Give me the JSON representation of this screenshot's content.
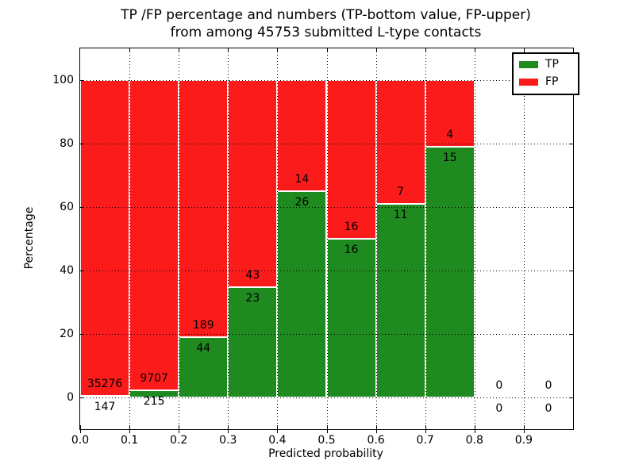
{
  "chart_data": {
    "type": "bar",
    "subtype": "stacked-percentage-histogram",
    "title_line1": "TP /FP percentage and numbers (TP-bottom value, FP-upper)",
    "title_line2": "from among 45753 submitted L-type contacts",
    "total_contacts": 45753,
    "xlabel": "Predicted probability",
    "ylabel": "Percentage",
    "xlim": [
      0.0,
      1.0
    ],
    "ylim": [
      -10,
      110
    ],
    "x_tick_labels": [
      "0.0",
      "0.1",
      "0.2",
      "0.3",
      "0.4",
      "0.5",
      "0.6",
      "0.7",
      "0.8",
      "0.9"
    ],
    "y_tick_values": [
      0,
      20,
      40,
      60,
      80,
      100
    ],
    "y_tick_labels": [
      "0",
      "20",
      "40",
      "60",
      "80",
      "100"
    ],
    "grid": "dotted",
    "legend_position": "upper right",
    "series": [
      {
        "name": "TP",
        "color": "#1f8a1f"
      },
      {
        "name": "FP",
        "color": "#fb1b1b"
      }
    ],
    "bins": [
      {
        "range": [
          0.0,
          0.1
        ],
        "tp": 147,
        "fp": 35276,
        "tp_percent": 0.41
      },
      {
        "range": [
          0.1,
          0.2
        ],
        "tp": 215,
        "fp": 9707,
        "tp_percent": 2.17
      },
      {
        "range": [
          0.2,
          0.3
        ],
        "tp": 44,
        "fp": 189,
        "tp_percent": 18.88
      },
      {
        "range": [
          0.3,
          0.4
        ],
        "tp": 23,
        "fp": 43,
        "tp_percent": 34.85
      },
      {
        "range": [
          0.4,
          0.5
        ],
        "tp": 26,
        "fp": 14,
        "tp_percent": 65.0
      },
      {
        "range": [
          0.5,
          0.6
        ],
        "tp": 16,
        "fp": 16,
        "tp_percent": 50.0
      },
      {
        "range": [
          0.6,
          0.7
        ],
        "tp": 11,
        "fp": 7,
        "tp_percent": 61.11
      },
      {
        "range": [
          0.7,
          0.8
        ],
        "tp": 15,
        "fp": 4,
        "tp_percent": 78.95
      },
      {
        "range": [
          0.8,
          0.9
        ],
        "tp": 0,
        "fp": 0,
        "tp_percent": null
      },
      {
        "range": [
          0.9,
          1.0
        ],
        "tp": 0,
        "fp": 0,
        "tp_percent": null
      }
    ]
  }
}
